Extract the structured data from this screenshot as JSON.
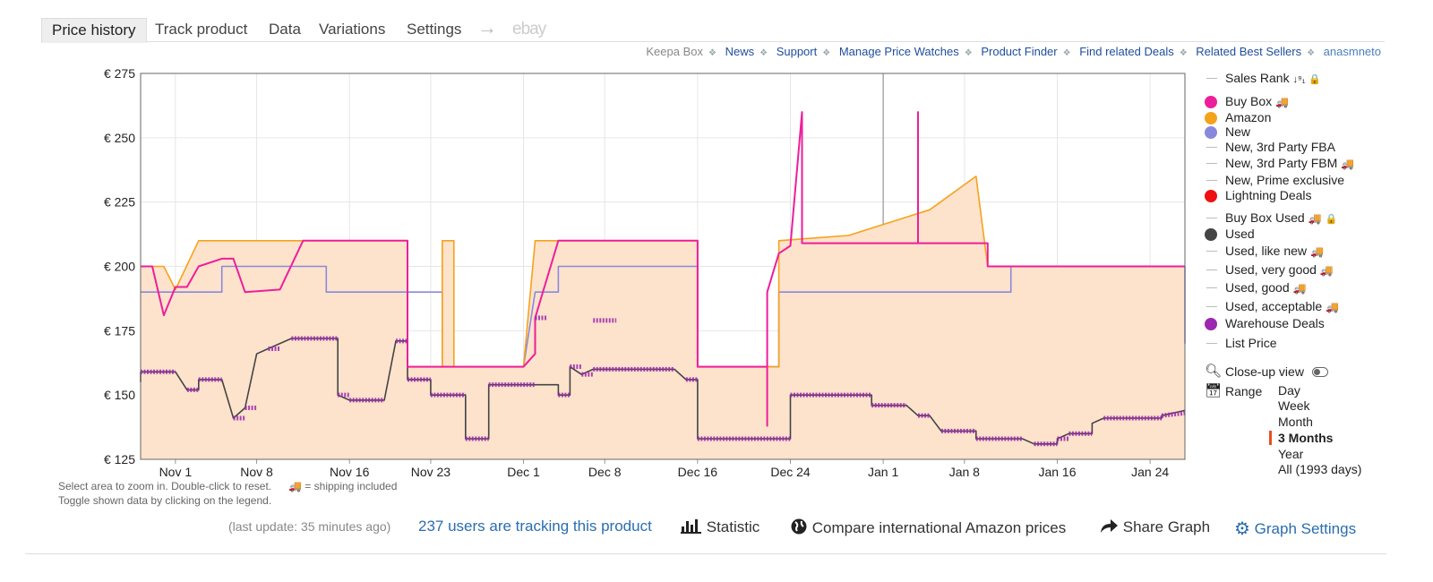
{
  "tabs": [
    {
      "label": "Price history",
      "active": true
    },
    {
      "label": "Track product"
    },
    {
      "label": "Data"
    },
    {
      "label": "Variations"
    },
    {
      "label": "Settings"
    }
  ],
  "tab_arrow": "→",
  "tab_ebay": "ebay",
  "links": [
    "Keepa Box",
    "News",
    "Support",
    "Manage Price Watches",
    "Product Finder",
    "Find related Deals",
    "Related Best Sellers",
    "anasmneto"
  ],
  "legend": {
    "sales_rank": "Sales Rank",
    "buy_box": "Buy Box",
    "amazon": "Amazon",
    "new": "New",
    "new_fba": "New, 3rd Party FBA",
    "new_fbm": "New, 3rd Party FBM",
    "new_prime": "New, Prime exclusive",
    "lightning": "Lightning Deals",
    "buy_box_used": "Buy Box Used",
    "used": "Used",
    "used_like_new": "Used, like new",
    "used_very_good": "Used, very good",
    "used_good": "Used, good",
    "used_acceptable": "Used, acceptable",
    "warehouse": "Warehouse Deals",
    "list_price": "List Price",
    "close_up": "Close-up view",
    "range": "Range",
    "range_options": [
      "Day",
      "Week",
      "Month",
      "3 Months",
      "Year",
      "All (1993 days)"
    ],
    "range_selected": "3 Months",
    "colors": {
      "buy_box": "#ee1e9b",
      "amazon": "#f5a21b",
      "new": "#8889dd",
      "lightning": "#ee1111",
      "used": "#444444",
      "warehouse": "#9c27b0",
      "line": "#bbbbbb"
    }
  },
  "hints": {
    "line1": "Select area to zoom in. Double-click to reset.",
    "shipping": "= shipping included",
    "line2": "Toggle shown data by clicking on the legend."
  },
  "footer": {
    "last_update": "(last update: 35 minutes ago)",
    "tracking": "237 users are tracking this product",
    "statistic": "Statistic",
    "compare": "Compare international Amazon prices",
    "share": "Share Graph",
    "settings": "Graph Settings"
  },
  "chart_data": {
    "type": "line",
    "x_axis": "date",
    "xticks": [
      "Nov 1",
      "Nov 8",
      "Nov 16",
      "Nov 23",
      "Dec 1",
      "Dec 8",
      "Dec 16",
      "Dec 24",
      "Jan 1",
      "Jan 8",
      "Jan 16",
      "Jan 24"
    ],
    "xrange": [
      "Oct 29",
      "Jan 27"
    ],
    "yticks": [
      "€ 275",
      "€ 250",
      "€ 225",
      "€ 200",
      "€ 175",
      "€ 150",
      "€ 125"
    ],
    "ylim": [
      125,
      275
    ],
    "currency": "€",
    "vertical_marker": "Jan 1",
    "series": [
      {
        "name": "Amazon",
        "color": "#f5a21b",
        "fill": "#fde3cc",
        "points": [
          [
            "Oct 29",
            200
          ],
          [
            "Oct 31",
            200
          ],
          [
            "Nov 1",
            191
          ],
          [
            "Nov 3",
            210
          ],
          [
            "Nov 21",
            210
          ],
          [
            "Nov 21",
            161
          ],
          [
            "Nov 24",
            161
          ],
          [
            "Nov 24",
            210
          ],
          [
            "Nov 25",
            210
          ],
          [
            "Nov 25",
            161
          ],
          [
            "Dec 1",
            161
          ],
          [
            "Dec 2",
            210
          ],
          [
            "Dec 16",
            210
          ],
          [
            "Dec 16",
            161
          ],
          [
            "Dec 23",
            161
          ],
          [
            "Dec 23",
            210
          ],
          [
            "Dec 29",
            212
          ],
          [
            "Jan 5",
            222
          ],
          [
            "Jan 9",
            235
          ],
          [
            "Jan 10",
            200
          ],
          [
            "Jan 27",
            200
          ]
        ]
      },
      {
        "name": "Buy Box",
        "color": "#ee1e9b",
        "points": [
          [
            "Oct 29",
            200
          ],
          [
            "Oct 30",
            200
          ],
          [
            "Oct 31",
            181
          ],
          [
            "Nov 1",
            192
          ],
          [
            "Nov 2",
            192
          ],
          [
            "Nov 3",
            200
          ],
          [
            "Nov 5",
            203
          ],
          [
            "Nov 6",
            203
          ],
          [
            "Nov 7",
            190
          ],
          [
            "Nov 10",
            191
          ],
          [
            "Nov 12",
            210
          ],
          [
            "Nov 21",
            210
          ],
          [
            "Nov 21",
            161
          ],
          [
            "Dec 1",
            161
          ],
          [
            "Dec 2",
            166
          ],
          [
            "Dec 2",
            180
          ],
          [
            "Dec 4",
            210
          ],
          [
            "Dec 16",
            210
          ],
          [
            "Dec 16",
            161
          ],
          [
            "Dec 22",
            161
          ],
          [
            "Dec 22",
            138
          ],
          [
            "Dec 22",
            190
          ],
          [
            "Dec 23",
            205
          ],
          [
            "Dec 24",
            208
          ],
          [
            "Dec 25",
            260
          ],
          [
            "Dec 25",
            209
          ],
          [
            "Jan 4",
            209
          ],
          [
            "Jan 4",
            260
          ],
          [
            "Jan 4",
            209
          ],
          [
            "Jan 10",
            209
          ],
          [
            "Jan 10",
            200
          ],
          [
            "Jan 27",
            200
          ]
        ]
      },
      {
        "name": "New",
        "color": "#8889dd",
        "points": [
          [
            "Oct 29",
            190
          ],
          [
            "Nov 5",
            190
          ],
          [
            "Nov 5",
            200
          ],
          [
            "Nov 14",
            200
          ],
          [
            "Nov 14",
            190
          ],
          [
            "Nov 24",
            190
          ],
          [
            "Nov 24",
            161
          ],
          [
            "Dec 1",
            161
          ],
          [
            "Dec 2",
            190
          ],
          [
            "Dec 4",
            190
          ],
          [
            "Dec 4",
            200
          ],
          [
            "Dec 16",
            200
          ],
          [
            "Dec 16",
            161
          ],
          [
            "Dec 23",
            161
          ],
          [
            "Dec 23",
            190
          ],
          [
            "Jan 12",
            190
          ],
          [
            "Jan 12",
            200
          ],
          [
            "Jan 27",
            200
          ],
          [
            "Jan 27",
            170
          ]
        ]
      },
      {
        "name": "Used",
        "color": "#444444",
        "points": [
          [
            "Oct 29",
            155
          ],
          [
            "Oct 29",
            159
          ],
          [
            "Nov 1",
            159
          ],
          [
            "Nov 2",
            152
          ],
          [
            "Nov 3",
            152
          ],
          [
            "Nov 3",
            156
          ],
          [
            "Nov 5",
            156
          ],
          [
            "Nov 6",
            141
          ],
          [
            "Nov 7",
            145
          ],
          [
            "Nov 8",
            166
          ],
          [
            "Nov 9",
            168
          ],
          [
            "Nov 11",
            172
          ],
          [
            "Nov 15",
            172
          ],
          [
            "Nov 15",
            150
          ],
          [
            "Nov 16",
            148
          ],
          [
            "Nov 19",
            148
          ],
          [
            "Nov 20",
            171
          ],
          [
            "Nov 21",
            171
          ],
          [
            "Nov 21",
            156
          ],
          [
            "Nov 23",
            156
          ],
          [
            "Nov 23",
            150
          ],
          [
            "Nov 26",
            150
          ],
          [
            "Nov 26",
            133
          ],
          [
            "Nov 28",
            133
          ],
          [
            "Nov 28",
            154
          ],
          [
            "Dec 4",
            154
          ],
          [
            "Dec 4",
            150
          ],
          [
            "Dec 5",
            150
          ],
          [
            "Dec 5",
            161
          ],
          [
            "Dec 6",
            158
          ],
          [
            "Dec 7",
            160
          ],
          [
            "Dec 14",
            160
          ],
          [
            "Dec 15",
            156
          ],
          [
            "Dec 16",
            156
          ],
          [
            "Dec 16",
            133
          ],
          [
            "Dec 24",
            133
          ],
          [
            "Dec 24",
            150
          ],
          [
            "Dec 31",
            150
          ],
          [
            "Dec 31",
            146
          ],
          [
            "Jan 3",
            146
          ],
          [
            "Jan 4",
            142
          ],
          [
            "Jan 5",
            142
          ],
          [
            "Jan 6",
            136
          ],
          [
            "Jan 9",
            136
          ],
          [
            "Jan 9",
            133
          ],
          [
            "Jan 13",
            133
          ],
          [
            "Jan 14",
            131
          ],
          [
            "Jan 16",
            131
          ],
          [
            "Jan 16",
            133
          ],
          [
            "Jan 17",
            135
          ],
          [
            "Jan 19",
            135
          ],
          [
            "Jan 19",
            139
          ],
          [
            "Jan 20",
            141
          ],
          [
            "Jan 25",
            141
          ],
          [
            "Jan 25",
            142
          ],
          [
            "Jan 27",
            144
          ]
        ]
      }
    ],
    "warehouse_deals": {
      "name": "Warehouse Deals",
      "color": "#9c27b0",
      "segments": [
        [
          [
            "Oct 29",
            159
          ],
          [
            "Nov 1",
            159
          ]
        ],
        [
          [
            "Nov 2",
            152
          ],
          [
            "Nov 3",
            152
          ]
        ],
        [
          [
            "Nov 3",
            156
          ],
          [
            "Nov 5",
            156
          ]
        ],
        [
          [
            "Nov 6",
            141
          ],
          [
            "Nov 7",
            141
          ]
        ],
        [
          [
            "Nov 7",
            145
          ],
          [
            "Nov 8",
            145
          ]
        ],
        [
          [
            "Nov 9",
            168
          ],
          [
            "Nov 10",
            168
          ]
        ],
        [
          [
            "Nov 11",
            172
          ],
          [
            "Nov 15",
            172
          ]
        ],
        [
          [
            "Nov 15",
            150
          ],
          [
            "Nov 16",
            150
          ]
        ],
        [
          [
            "Nov 16",
            148
          ],
          [
            "Nov 19",
            148
          ]
        ],
        [
          [
            "Nov 20",
            171
          ],
          [
            "Nov 21",
            171
          ]
        ],
        [
          [
            "Nov 21",
            156
          ],
          [
            "Nov 23",
            156
          ]
        ],
        [
          [
            "Nov 23",
            150
          ],
          [
            "Nov 26",
            150
          ]
        ],
        [
          [
            "Nov 26",
            133
          ],
          [
            "Nov 28",
            133
          ]
        ],
        [
          [
            "Nov 28",
            154
          ],
          [
            "Dec 2",
            154
          ]
        ],
        [
          [
            "Dec 2",
            180
          ],
          [
            "Dec 3",
            180
          ]
        ],
        [
          [
            "Dec 4",
            150
          ],
          [
            "Dec 5",
            150
          ]
        ],
        [
          [
            "Dec 5",
            161
          ],
          [
            "Dec 6",
            161
          ]
        ],
        [
          [
            "Dec 6",
            158
          ],
          [
            "Dec 7",
            158
          ]
        ],
        [
          [
            "Dec 7",
            179
          ],
          [
            "Dec 9",
            179
          ]
        ],
        [
          [
            "Dec 7",
            160
          ],
          [
            "Dec 14",
            160
          ]
        ],
        [
          [
            "Dec 15",
            156
          ],
          [
            "Dec 16",
            156
          ]
        ],
        [
          [
            "Dec 16",
            133
          ],
          [
            "Dec 24",
            133
          ]
        ],
        [
          [
            "Dec 24",
            150
          ],
          [
            "Dec 31",
            150
          ]
        ],
        [
          [
            "Dec 31",
            146
          ],
          [
            "Jan 3",
            146
          ]
        ],
        [
          [
            "Jan 4",
            142
          ],
          [
            "Jan 5",
            142
          ]
        ],
        [
          [
            "Jan 6",
            136
          ],
          [
            "Jan 9",
            136
          ]
        ],
        [
          [
            "Jan 9",
            133
          ],
          [
            "Jan 13",
            133
          ]
        ],
        [
          [
            "Jan 14",
            131
          ],
          [
            "Jan 16",
            131
          ]
        ],
        [
          [
            "Jan 16",
            133
          ],
          [
            "Jan 17",
            133
          ]
        ],
        [
          [
            "Jan 17",
            135
          ],
          [
            "Jan 19",
            135
          ]
        ],
        [
          [
            "Jan 20",
            141
          ],
          [
            "Jan 25",
            141
          ]
        ],
        [
          [
            "Jan 25",
            142
          ],
          [
            "Jan 27",
            143
          ]
        ]
      ]
    }
  }
}
